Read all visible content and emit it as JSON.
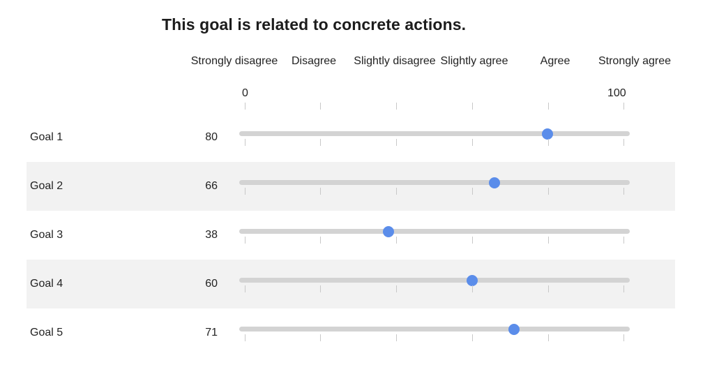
{
  "question": "This goal is related to concrete actions.",
  "scale": {
    "labels": [
      "Strongly disagree",
      "Disagree",
      "Slightly disagree",
      "Slightly agree",
      "Agree",
      "Strongly agree"
    ],
    "min": 0,
    "max": 100,
    "min_label": "0",
    "max_label": "100"
  },
  "colors": {
    "thumb": "#5b8dea",
    "track": "#d3d3d3",
    "alt_row": "#f2f2f2"
  },
  "goals": [
    {
      "label": "Goal 1",
      "value": 80,
      "display": "80"
    },
    {
      "label": "Goal 2",
      "value": 66,
      "display": "66"
    },
    {
      "label": "Goal 3",
      "value": 38,
      "display": "38"
    },
    {
      "label": "Goal 4",
      "value": 60,
      "display": "60"
    },
    {
      "label": "Goal 5",
      "value": 71,
      "display": "71"
    }
  ]
}
